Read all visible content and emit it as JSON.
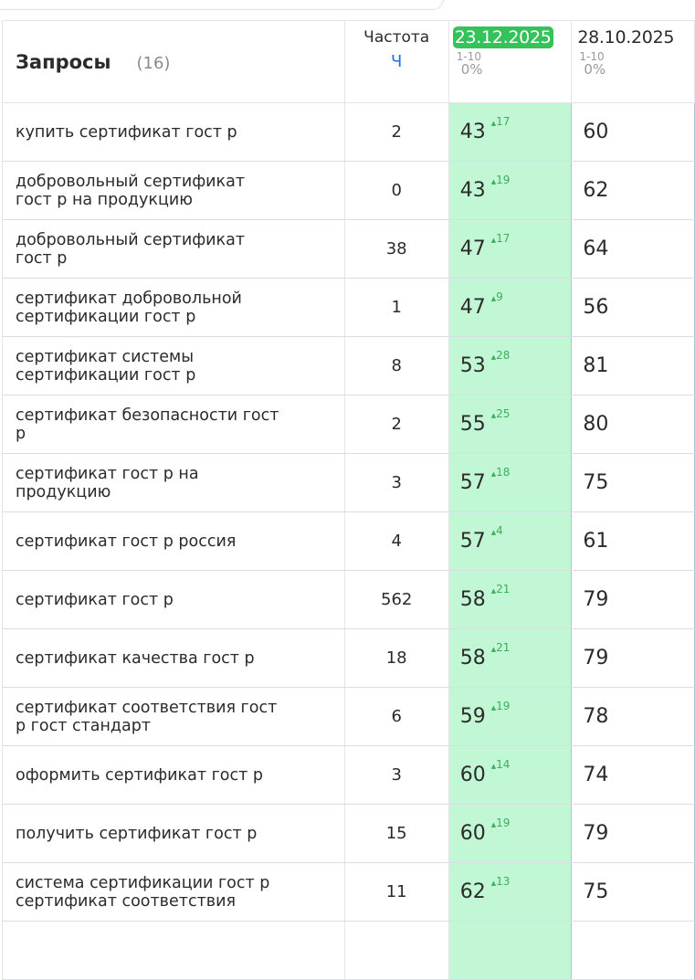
{
  "header": {
    "queries_label": "Запросы",
    "queries_count": "(16)",
    "frequency_label": "Частота",
    "frequency_type": "Ч",
    "dates": [
      {
        "date": "23.12.2025",
        "range": "1-10",
        "percent": "0%",
        "active": true
      },
      {
        "date": "28.10.2025",
        "range": "1-10",
        "percent": "0%",
        "active": false
      }
    ]
  },
  "rows": [
    {
      "query": "купить сертификат гост р",
      "freq": "2",
      "pos1": "43",
      "delta": "17",
      "pos2": "60"
    },
    {
      "query": "добровольный сертификат гост р на продукцию",
      "freq": "0",
      "pos1": "43",
      "delta": "19",
      "pos2": "62"
    },
    {
      "query": "добровольный сертификат гост р",
      "freq": "38",
      "pos1": "47",
      "delta": "17",
      "pos2": "64"
    },
    {
      "query": "сертификат добровольной сертификации гост р",
      "freq": "1",
      "pos1": "47",
      "delta": "9",
      "pos2": "56"
    },
    {
      "query": "сертификат системы сертификации гост р",
      "freq": "8",
      "pos1": "53",
      "delta": "28",
      "pos2": "81"
    },
    {
      "query": "сертификат безопасности гост р",
      "freq": "2",
      "pos1": "55",
      "delta": "25",
      "pos2": "80"
    },
    {
      "query": "сертификат гост р на продукцию",
      "freq": "3",
      "pos1": "57",
      "delta": "18",
      "pos2": "75"
    },
    {
      "query": "сертификат гост р россия",
      "freq": "4",
      "pos1": "57",
      "delta": "4",
      "pos2": "61"
    },
    {
      "query": "сертификат гост р",
      "freq": "562",
      "pos1": "58",
      "delta": "21",
      "pos2": "79"
    },
    {
      "query": "сертификат качества гост р",
      "freq": "18",
      "pos1": "58",
      "delta": "21",
      "pos2": "79"
    },
    {
      "query": "сертификат соответствия гост р гост стандарт",
      "freq": "6",
      "pos1": "59",
      "delta": "19",
      "pos2": "78"
    },
    {
      "query": "оформить сертификат гост р",
      "freq": "3",
      "pos1": "60",
      "delta": "14",
      "pos2": "74"
    },
    {
      "query": "получить сертификат гост р",
      "freq": "15",
      "pos1": "60",
      "delta": "19",
      "pos2": "79"
    },
    {
      "query": "система сертификации гост р сертификат соответствия",
      "freq": "11",
      "pos1": "62",
      "delta": "13",
      "pos2": "75"
    }
  ],
  "delta_arrow": "▲",
  "colors": {
    "active_date": "#33c35a",
    "highlight_cell": "#c2f7d6",
    "delta": "#3ab05a",
    "frequency_type": "#1a73e8"
  }
}
